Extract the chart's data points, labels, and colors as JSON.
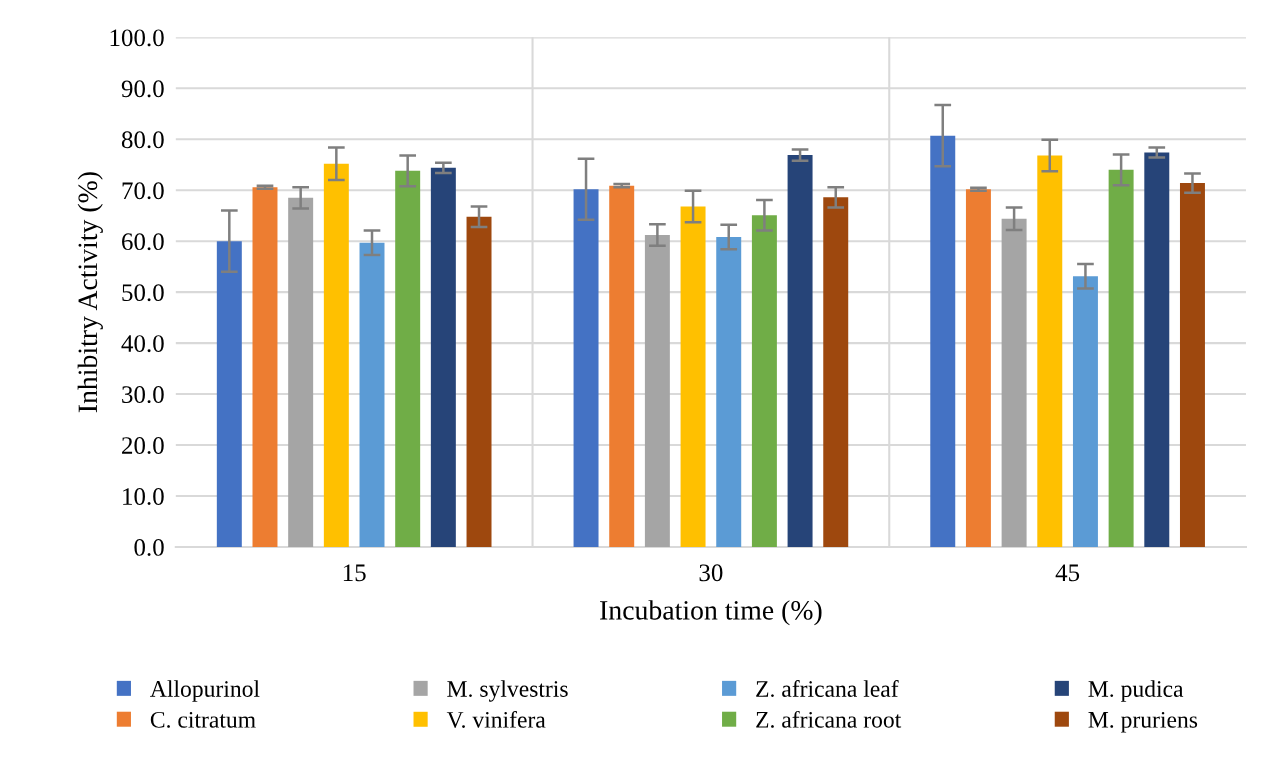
{
  "chart_data": {
    "type": "bar",
    "xlabel": "Incubation time (%)",
    "ylabel": "Inhibitry Activity (%)",
    "categories": [
      "15",
      "30",
      "45"
    ],
    "series": [
      {
        "name": "Allopurinol",
        "color": "#4472c4",
        "values": [
          60.0,
          70.2,
          80.7
        ],
        "errors": [
          6.0,
          6.0,
          6.0
        ]
      },
      {
        "name": "C. citratum",
        "color": "#ed7d31",
        "values": [
          70.6,
          70.9,
          70.2
        ],
        "errors": [
          0.3,
          0.3,
          0.3
        ]
      },
      {
        "name": "M. sylvestris",
        "color": "#a5a5a5",
        "values": [
          68.5,
          61.2,
          64.4
        ],
        "errors": [
          2.1,
          2.1,
          2.2
        ]
      },
      {
        "name": "V. vinifera",
        "color": "#ffc000",
        "values": [
          75.2,
          66.8,
          76.8
        ],
        "errors": [
          3.2,
          3.1,
          3.1
        ]
      },
      {
        "name": "Z. africana leaf",
        "color": "#5b9bd5",
        "values": [
          59.7,
          60.8,
          53.1
        ],
        "errors": [
          2.4,
          2.4,
          2.4
        ]
      },
      {
        "name": "Z. africana root",
        "color": "#70ad47",
        "values": [
          73.8,
          65.1,
          74.0
        ],
        "errors": [
          3.0,
          3.0,
          3.0
        ]
      },
      {
        "name": "M. pudica",
        "color": "#264478",
        "values": [
          74.4,
          76.9,
          77.4
        ],
        "errors": [
          1.0,
          1.1,
          1.0
        ]
      },
      {
        "name": "M. pruriens",
        "color": "#9e480e",
        "values": [
          64.8,
          68.6,
          71.4
        ],
        "errors": [
          2.0,
          2.0,
          1.9
        ]
      }
    ],
    "ylim": [
      0,
      100
    ],
    "yticks": [
      {
        "value": 0,
        "label": "0.0"
      },
      {
        "value": 10,
        "label": "10.0"
      },
      {
        "value": 20,
        "label": "20.0"
      },
      {
        "value": 30,
        "label": "30.0"
      },
      {
        "value": 40,
        "label": "40.0"
      },
      {
        "value": 50,
        "label": "50.0"
      },
      {
        "value": 60,
        "label": "60.0"
      },
      {
        "value": 70,
        "label": "70.0"
      },
      {
        "value": 80,
        "label": "80.0"
      },
      {
        "value": 90,
        "label": "90.0"
      },
      {
        "value": 100,
        "label": "100.0"
      }
    ],
    "grid": true,
    "legend": "bottom"
  }
}
